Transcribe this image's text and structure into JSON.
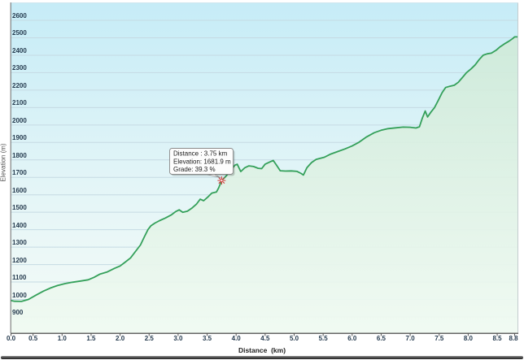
{
  "tooltip": {
    "line1": "Distance : 3.75 km",
    "line2": "Elevation: 1681.9 m",
    "line3": "Grade: 39.3 %"
  },
  "axes": {
    "x_title": "Distance  (km)",
    "y_title": "Elevation (m)"
  },
  "chart_data": {
    "type": "area",
    "xlabel": "Distance  (km)",
    "ylabel": "Elevation (m)",
    "xlim": [
      0,
      8.8
    ],
    "ylim_gridlines": [
      900,
      2600
    ],
    "grid": "horizontal",
    "x_ticks": [
      0,
      0.5,
      1,
      1.5,
      2,
      2.5,
      3,
      3.5,
      4,
      4.5,
      5,
      5.5,
      6,
      6.5,
      7,
      7.5,
      8,
      8.5,
      8.8
    ],
    "x_tick_labels": [
      "0.0",
      "0.5",
      "1.0",
      "1.5",
      "2.0",
      "2.5",
      "3.0",
      "3.5",
      "4.0",
      "4.5",
      "5.0",
      "5.5",
      "6.0",
      "6.5",
      "7.0",
      "7.5",
      "8.0",
      "8.5",
      "8.8"
    ],
    "y_ticks": [
      900,
      1000,
      1100,
      1200,
      1300,
      1400,
      1500,
      1600,
      1700,
      1800,
      1900,
      2000,
      2100,
      2200,
      2300,
      2400,
      2500,
      2600
    ],
    "selected_point": {
      "distance_km": 3.75,
      "elevation_m": 1681.9,
      "grade_pct": 39.3
    },
    "series": [
      {
        "name": "elevation-profile",
        "points": [
          [
            0.0,
            1008
          ],
          [
            0.08,
            997
          ],
          [
            0.18,
            990
          ],
          [
            0.3,
            989
          ],
          [
            0.42,
            1000
          ],
          [
            0.55,
            1025
          ],
          [
            0.68,
            1048
          ],
          [
            0.8,
            1066
          ],
          [
            0.92,
            1080
          ],
          [
            1.05,
            1091
          ],
          [
            1.18,
            1099
          ],
          [
            1.32,
            1106
          ],
          [
            1.45,
            1113
          ],
          [
            1.55,
            1127
          ],
          [
            1.65,
            1145
          ],
          [
            1.78,
            1158
          ],
          [
            1.9,
            1178
          ],
          [
            2.0,
            1192
          ],
          [
            2.08,
            1212
          ],
          [
            2.18,
            1238
          ],
          [
            2.28,
            1282
          ],
          [
            2.35,
            1312
          ],
          [
            2.42,
            1360
          ],
          [
            2.48,
            1400
          ],
          [
            2.53,
            1422
          ],
          [
            2.6,
            1438
          ],
          [
            2.68,
            1452
          ],
          [
            2.78,
            1467
          ],
          [
            2.88,
            1484
          ],
          [
            2.96,
            1504
          ],
          [
            3.02,
            1514
          ],
          [
            3.08,
            1500
          ],
          [
            3.16,
            1506
          ],
          [
            3.24,
            1524
          ],
          [
            3.32,
            1548
          ],
          [
            3.38,
            1575
          ],
          [
            3.44,
            1566
          ],
          [
            3.52,
            1590
          ],
          [
            3.58,
            1610
          ],
          [
            3.66,
            1616
          ],
          [
            3.7,
            1640
          ],
          [
            3.75,
            1681.9
          ],
          [
            3.82,
            1705
          ],
          [
            3.9,
            1738
          ],
          [
            3.98,
            1770
          ],
          [
            4.02,
            1775
          ],
          [
            4.08,
            1733
          ],
          [
            4.15,
            1755
          ],
          [
            4.22,
            1766
          ],
          [
            4.3,
            1762
          ],
          [
            4.38,
            1752
          ],
          [
            4.44,
            1750
          ],
          [
            4.5,
            1775
          ],
          [
            4.58,
            1788
          ],
          [
            4.64,
            1797
          ],
          [
            4.7,
            1768
          ],
          [
            4.76,
            1738
          ],
          [
            4.85,
            1736
          ],
          [
            4.95,
            1737
          ],
          [
            5.05,
            1734
          ],
          [
            5.12,
            1722
          ],
          [
            5.16,
            1713
          ],
          [
            5.22,
            1755
          ],
          [
            5.3,
            1785
          ],
          [
            5.38,
            1803
          ],
          [
            5.46,
            1810
          ],
          [
            5.52,
            1815
          ],
          [
            5.62,
            1832
          ],
          [
            5.75,
            1848
          ],
          [
            5.88,
            1863
          ],
          [
            6.0,
            1880
          ],
          [
            6.12,
            1902
          ],
          [
            6.25,
            1932
          ],
          [
            6.38,
            1956
          ],
          [
            6.5,
            1970
          ],
          [
            6.62,
            1979
          ],
          [
            6.75,
            1984
          ],
          [
            6.88,
            1988
          ],
          [
            7.0,
            1987
          ],
          [
            7.1,
            1983
          ],
          [
            7.16,
            1990
          ],
          [
            7.21,
            2040
          ],
          [
            7.26,
            2080
          ],
          [
            7.3,
            2046
          ],
          [
            7.36,
            2075
          ],
          [
            7.42,
            2100
          ],
          [
            7.48,
            2138
          ],
          [
            7.55,
            2185
          ],
          [
            7.61,
            2215
          ],
          [
            7.68,
            2222
          ],
          [
            7.76,
            2228
          ],
          [
            7.83,
            2245
          ],
          [
            7.9,
            2272
          ],
          [
            7.97,
            2300
          ],
          [
            8.05,
            2322
          ],
          [
            8.12,
            2345
          ],
          [
            8.19,
            2375
          ],
          [
            8.26,
            2400
          ],
          [
            8.33,
            2408
          ],
          [
            8.4,
            2412
          ],
          [
            8.48,
            2428
          ],
          [
            8.55,
            2448
          ],
          [
            8.62,
            2464
          ],
          [
            8.7,
            2480
          ],
          [
            8.77,
            2496
          ],
          [
            8.8,
            2505
          ]
        ]
      }
    ],
    "colors": {
      "line": "#34a05a",
      "area_top": "#cde9d6",
      "area_bottom": "#f0faf2",
      "bg_top": "#c6ecf7",
      "bg_mid": "#e3f5f7",
      "bg_bottom": "#f5fbf7",
      "grid": "#c5dae3",
      "marker": "#d83a3a",
      "axis_line": "#6e6e6e",
      "tick_text": "#263b4f"
    }
  }
}
